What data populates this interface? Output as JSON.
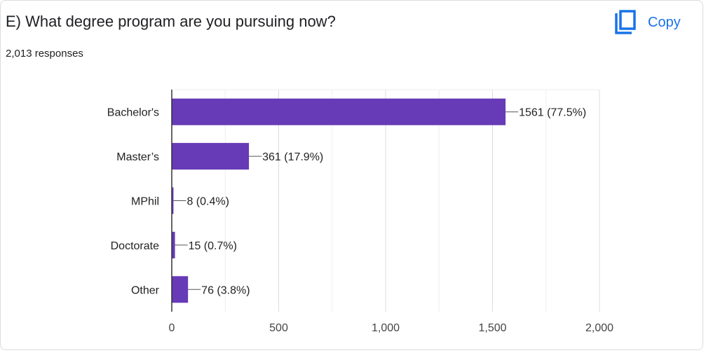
{
  "question": {
    "title": "E) What degree program are you pursuing now?",
    "responses": "2,013 responses"
  },
  "copy_button": {
    "label": "Copy",
    "icon": "copy-icon",
    "color": "#1a73e8"
  },
  "chart_data": {
    "type": "bar",
    "orientation": "horizontal",
    "categories": [
      "Bachelor's",
      "Master’s",
      "MPhil",
      "Doctorate",
      "Other"
    ],
    "values": [
      1561,
      361,
      8,
      15,
      76
    ],
    "data_labels": [
      "1561 (77.5%)",
      "361 (17.9%)",
      "8 (0.4%)",
      "15 (0.7%)",
      "76 (3.8%)"
    ],
    "xlim": [
      0,
      2000
    ],
    "xticks": [
      0,
      500,
      1000,
      1500,
      2000
    ],
    "xtick_labels": [
      "0",
      "500",
      "1,000",
      "1,500",
      "2,000"
    ],
    "bar_color": "#673ab7",
    "grid": true
  }
}
